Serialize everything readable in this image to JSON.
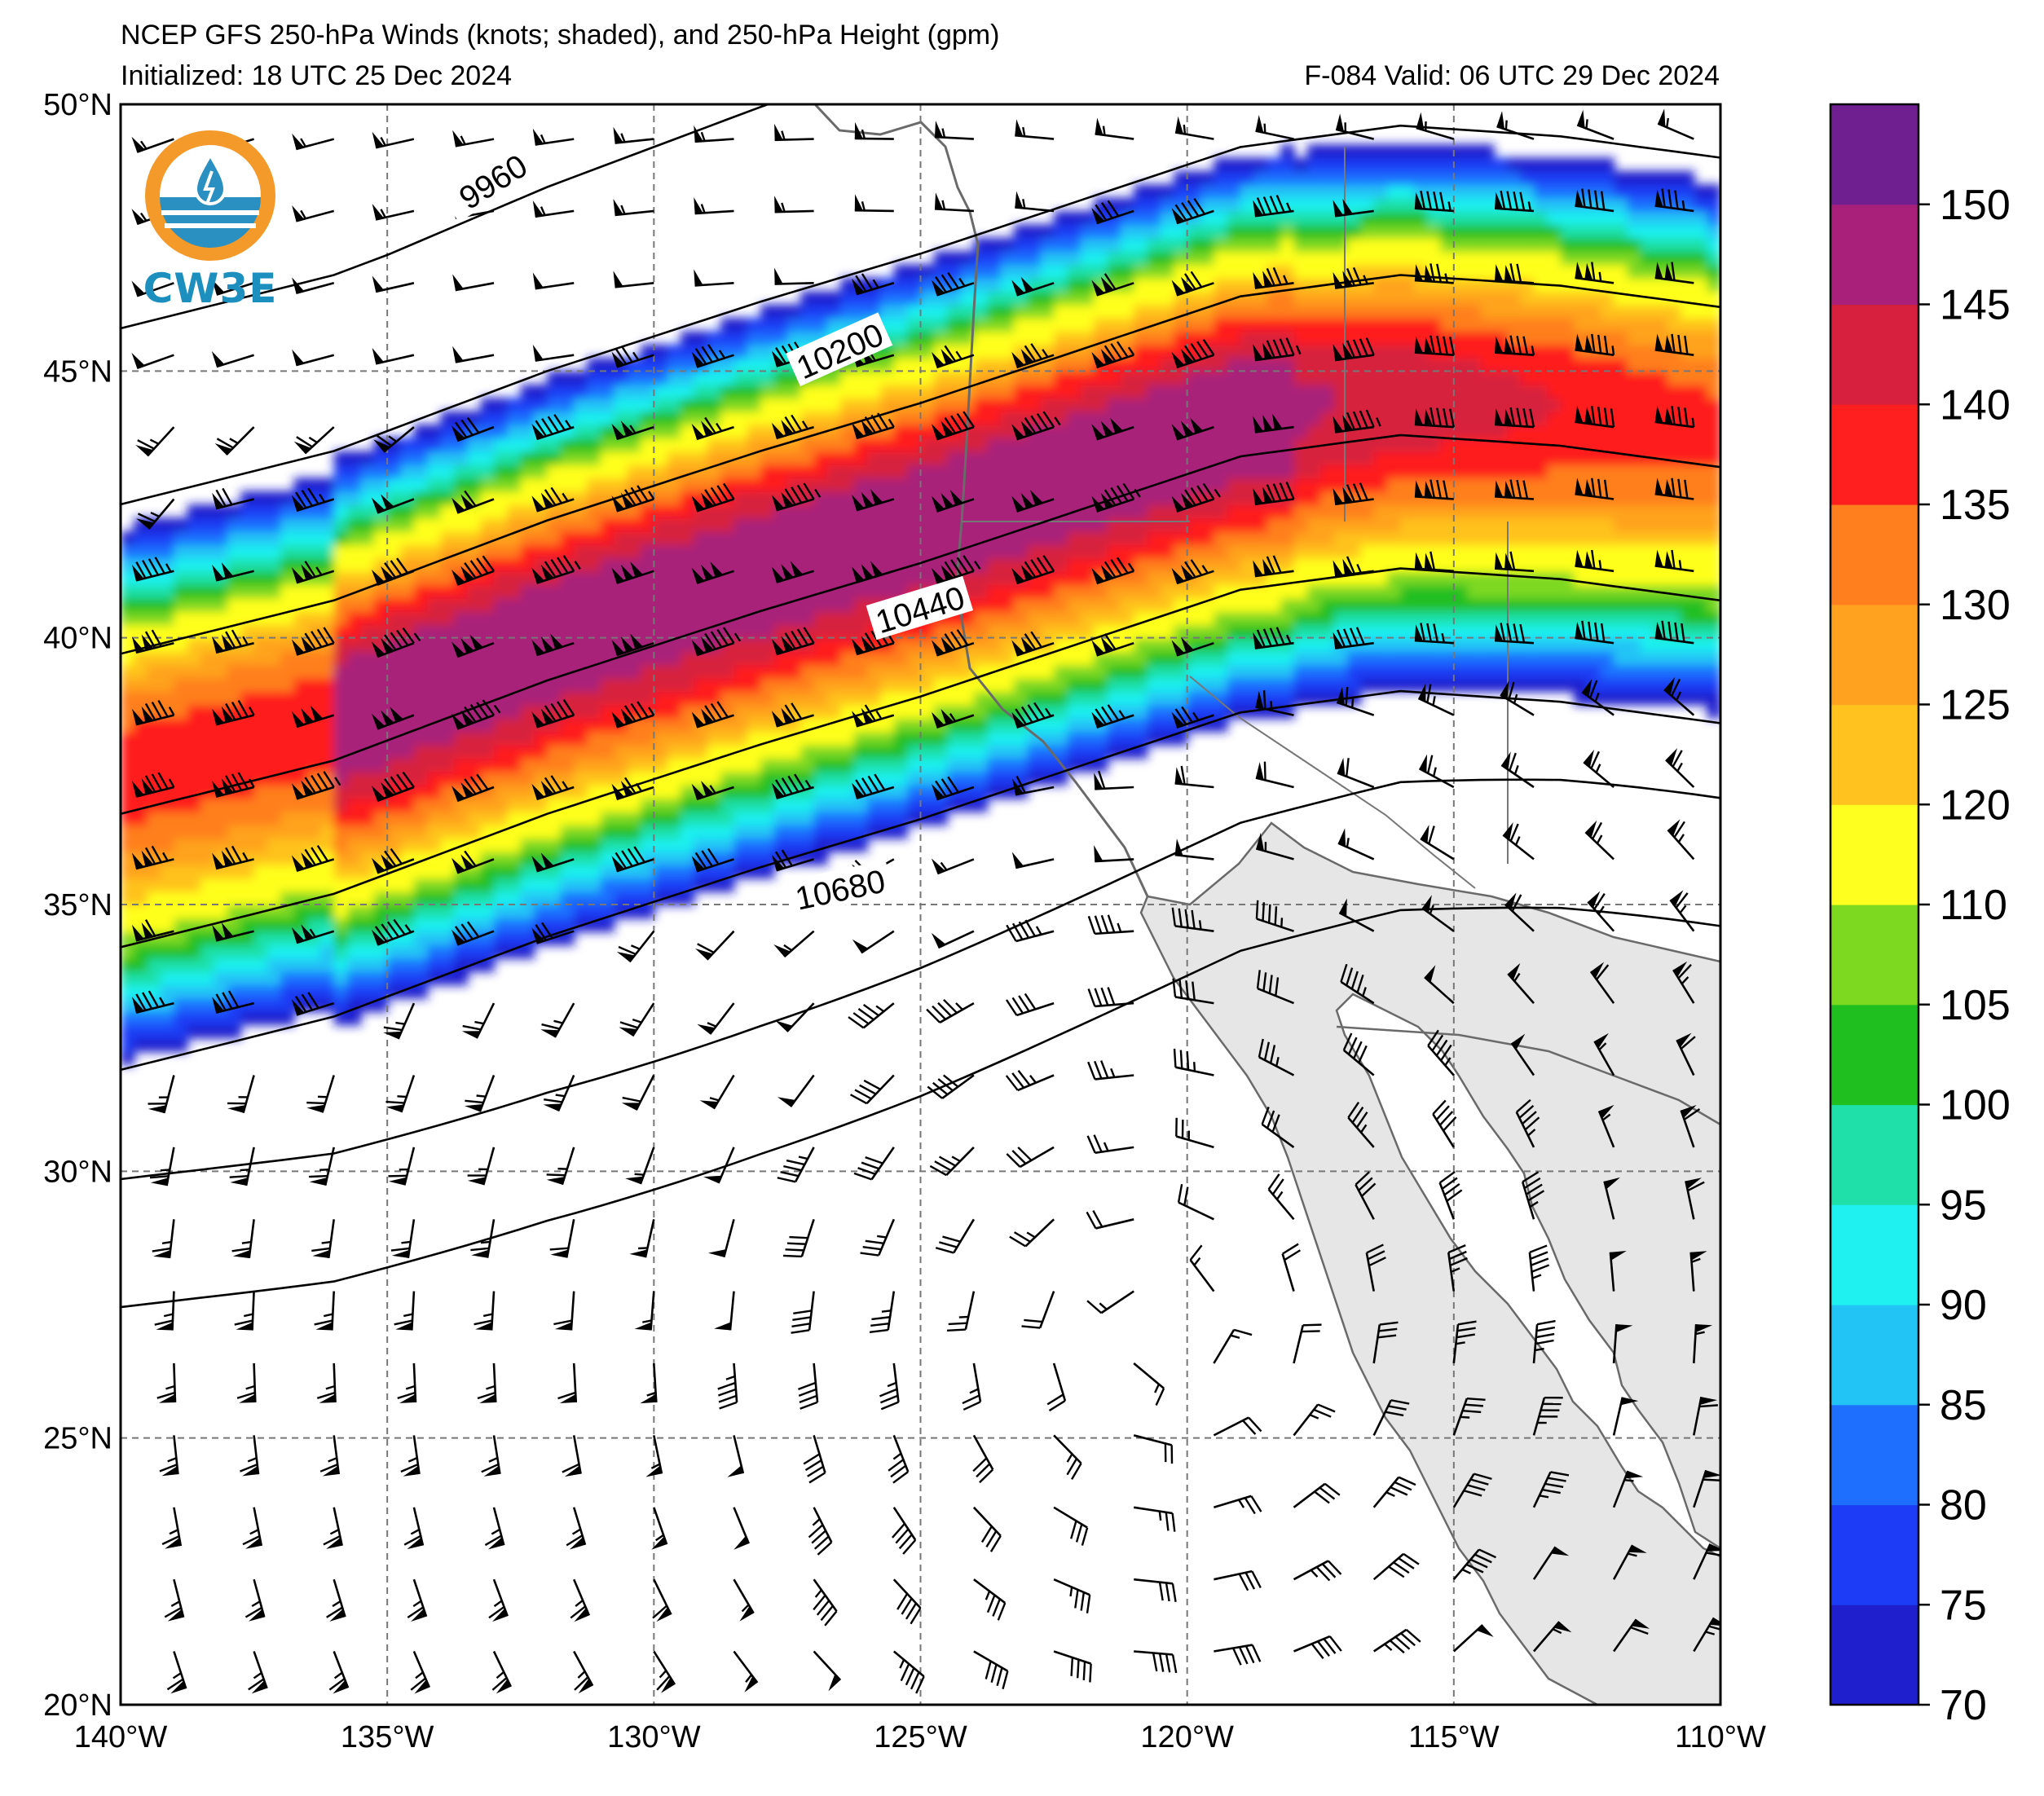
{
  "titles": {
    "line1": "NCEP GFS 250-hPa Winds (knots; shaded), and 250-hPa Height (gpm)",
    "line2_left": "Initialized: 18 UTC 25 Dec 2024",
    "line2_right": "F-084  Valid: 06 UTC 29 Dec 2024"
  },
  "logo": {
    "text": "CW3E",
    "icon": "cw3e-logo-icon"
  },
  "map": {
    "lon_range": [
      -140,
      -110
    ],
    "lat_range": [
      20,
      50
    ],
    "lon_ticks": [
      "140°W",
      "135°W",
      "130°W",
      "125°W",
      "120°W",
      "115°W",
      "110°W"
    ],
    "lat_ticks": [
      "50°N",
      "45°N",
      "40°N",
      "35°N",
      "30°N",
      "25°N",
      "20°N"
    ],
    "gridlines": "dashed",
    "land_color": "#e6e6e6"
  },
  "height_contours": {
    "labels": [
      "9960",
      "10200",
      "10440",
      "10680"
    ]
  },
  "colorbar": {
    "levels": [
      70,
      75,
      80,
      85,
      90,
      95,
      100,
      105,
      110,
      120,
      125,
      130,
      135,
      140,
      145,
      150
    ],
    "tick_labels": [
      "70",
      "75",
      "80",
      "85",
      "90",
      "95",
      "100",
      "105",
      "110",
      "120",
      "125",
      "130",
      "135",
      "140",
      "145",
      "150"
    ],
    "colors": [
      "#1f1fce",
      "#1c3cf5",
      "#1f6fff",
      "#21c4f5",
      "#1ff0f0",
      "#1fe0a8",
      "#20bf20",
      "#7dd820",
      "#ffff1f",
      "#ffc21f",
      "#ffa21f",
      "#ff7f1f",
      "#ff1f1f",
      "#d7203d",
      "#a8207a",
      "#6f1f8f"
    ]
  }
}
